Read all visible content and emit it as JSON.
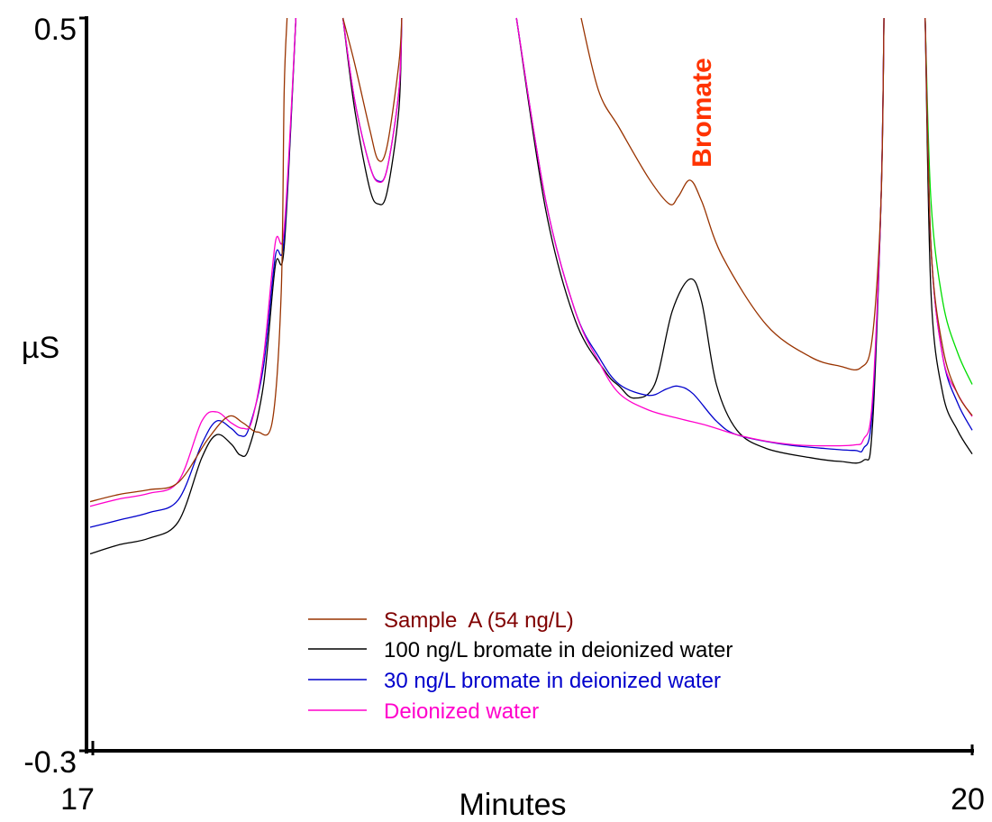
{
  "chart_data": {
    "type": "line",
    "title": "",
    "xlabel": "Minutes",
    "ylabel": "µS",
    "xlim": [
      17,
      20
    ],
    "ylim": [
      -0.3,
      0.5
    ],
    "x_tick_labels": [
      "17",
      "20"
    ],
    "y_tick_labels": [
      "0.5",
      "-0.3"
    ],
    "grid": false,
    "legend_position": "bottom-center",
    "annotation": {
      "text": "Bromate",
      "color": "#ff3300",
      "x": 19.04,
      "y": 0.42
    },
    "series": [
      {
        "name": "Sample  A (54 ng/L)",
        "color": "#993300",
        "points": [
          [
            17.0,
            -0.028
          ],
          [
            17.1,
            -0.02
          ],
          [
            17.2,
            -0.015
          ],
          [
            17.3,
            -0.007
          ],
          [
            17.4,
            0.04
          ],
          [
            17.47,
            0.065
          ],
          [
            17.52,
            0.058
          ],
          [
            17.57,
            0.048
          ],
          [
            17.62,
            0.06
          ],
          [
            17.65,
            0.2
          ],
          [
            17.66,
            0.42
          ],
          [
            17.67,
            0.5
          ],
          null,
          [
            17.86,
            0.5
          ],
          [
            17.9,
            0.45
          ],
          [
            17.95,
            0.38
          ],
          [
            17.98,
            0.345
          ],
          [
            18.01,
            0.36
          ],
          [
            18.05,
            0.45
          ],
          [
            18.06,
            0.5
          ],
          null,
          [
            18.67,
            0.5
          ],
          [
            18.73,
            0.42
          ],
          [
            18.8,
            0.38
          ],
          [
            18.9,
            0.325
          ],
          [
            18.97,
            0.297
          ],
          [
            19.0,
            0.305
          ],
          [
            19.04,
            0.323
          ],
          [
            19.08,
            0.3
          ],
          [
            19.15,
            0.24
          ],
          [
            19.3,
            0.165
          ],
          [
            19.45,
            0.13
          ],
          [
            19.55,
            0.12
          ],
          [
            19.62,
            0.118
          ],
          [
            19.66,
            0.15
          ],
          [
            19.69,
            0.3
          ],
          [
            19.7,
            0.5
          ],
          null,
          [
            19.84,
            0.5
          ],
          [
            19.86,
            0.25
          ],
          [
            19.9,
            0.14
          ],
          [
            19.95,
            0.09
          ],
          [
            20.0,
            0.066
          ]
        ]
      },
      {
        "name": "100 ng/L bromate in deionized water",
        "color": "#000000",
        "points": [
          [
            17.0,
            -0.085
          ],
          [
            17.1,
            -0.075
          ],
          [
            17.2,
            -0.068
          ],
          [
            17.3,
            -0.05
          ],
          [
            17.38,
            0.02
          ],
          [
            17.43,
            0.045
          ],
          [
            17.48,
            0.035
          ],
          [
            17.51,
            0.023
          ],
          [
            17.54,
            0.03
          ],
          [
            17.59,
            0.1
          ],
          [
            17.63,
            0.23
          ],
          [
            17.66,
            0.25
          ],
          [
            17.7,
            0.5
          ],
          null,
          [
            17.86,
            0.5
          ],
          [
            17.9,
            0.4
          ],
          [
            17.95,
            0.315
          ],
          [
            17.98,
            0.297
          ],
          [
            18.01,
            0.31
          ],
          [
            18.05,
            0.4
          ],
          [
            18.06,
            0.5
          ],
          null,
          [
            18.45,
            0.5
          ],
          [
            18.55,
            0.29
          ],
          [
            18.65,
            0.17
          ],
          [
            18.75,
            0.115
          ],
          [
            18.8,
            0.098
          ],
          [
            18.85,
            0.085
          ],
          [
            18.92,
            0.1
          ],
          [
            18.98,
            0.18
          ],
          [
            19.04,
            0.215
          ],
          [
            19.08,
            0.19
          ],
          [
            19.13,
            0.1
          ],
          [
            19.2,
            0.05
          ],
          [
            19.3,
            0.03
          ],
          [
            19.45,
            0.02
          ],
          [
            19.55,
            0.016
          ],
          [
            19.63,
            0.017
          ],
          [
            19.66,
            0.05
          ],
          [
            19.69,
            0.3
          ],
          [
            19.7,
            0.5
          ],
          null,
          [
            19.84,
            0.5
          ],
          [
            19.86,
            0.2
          ],
          [
            19.9,
            0.09
          ],
          [
            19.95,
            0.05
          ],
          [
            20.0,
            0.024
          ]
        ]
      },
      {
        "name": "30 ng/L bromate in deionized water",
        "color": "#0000cc",
        "points": [
          [
            17.0,
            -0.056
          ],
          [
            17.1,
            -0.048
          ],
          [
            17.2,
            -0.04
          ],
          [
            17.3,
            -0.026
          ],
          [
            17.38,
            0.035
          ],
          [
            17.43,
            0.06
          ],
          [
            17.48,
            0.052
          ],
          [
            17.51,
            0.044
          ],
          [
            17.54,
            0.052
          ],
          [
            17.59,
            0.12
          ],
          [
            17.63,
            0.24
          ],
          [
            17.66,
            0.26
          ],
          [
            17.7,
            0.5
          ],
          null,
          [
            17.86,
            0.5
          ],
          [
            17.9,
            0.41
          ],
          [
            17.95,
            0.34
          ],
          [
            17.98,
            0.322
          ],
          [
            18.01,
            0.335
          ],
          [
            18.05,
            0.42
          ],
          [
            18.06,
            0.5
          ],
          null,
          [
            18.45,
            0.5
          ],
          [
            18.55,
            0.3
          ],
          [
            18.65,
            0.18
          ],
          [
            18.73,
            0.13
          ],
          [
            18.8,
            0.1
          ],
          [
            18.9,
            0.088
          ],
          [
            18.96,
            0.095
          ],
          [
            19.0,
            0.098
          ],
          [
            19.05,
            0.09
          ],
          [
            19.13,
            0.06
          ],
          [
            19.2,
            0.045
          ],
          [
            19.35,
            0.035
          ],
          [
            19.5,
            0.03
          ],
          [
            19.6,
            0.028
          ],
          [
            19.63,
            0.03
          ],
          [
            19.66,
            0.07
          ],
          [
            19.69,
            0.3
          ],
          [
            19.7,
            0.5
          ],
          null,
          [
            19.84,
            0.5
          ],
          [
            19.86,
            0.25
          ],
          [
            19.9,
            0.13
          ],
          [
            19.95,
            0.08
          ],
          [
            20.0,
            0.05
          ]
        ]
      },
      {
        "name": "Deionized water",
        "color": "#ff00cc",
        "points": [
          [
            17.0,
            -0.033
          ],
          [
            17.1,
            -0.025
          ],
          [
            17.2,
            -0.019
          ],
          [
            17.3,
            -0.006
          ],
          [
            17.38,
            0.06
          ],
          [
            17.43,
            0.07
          ],
          [
            17.48,
            0.058
          ],
          [
            17.52,
            0.052
          ],
          [
            17.55,
            0.06
          ],
          [
            17.59,
            0.13
          ],
          [
            17.63,
            0.255
          ],
          [
            17.66,
            0.27
          ],
          [
            17.7,
            0.5
          ],
          null,
          [
            17.86,
            0.5
          ],
          [
            17.9,
            0.41
          ],
          [
            17.95,
            0.34
          ],
          [
            17.98,
            0.321
          ],
          [
            18.01,
            0.335
          ],
          [
            18.05,
            0.42
          ],
          [
            18.06,
            0.5
          ],
          null,
          [
            18.45,
            0.5
          ],
          [
            18.55,
            0.3
          ],
          [
            18.65,
            0.18
          ],
          [
            18.73,
            0.125
          ],
          [
            18.8,
            0.09
          ],
          [
            18.9,
            0.072
          ],
          [
            19.0,
            0.063
          ],
          [
            19.1,
            0.055
          ],
          [
            19.2,
            0.045
          ],
          [
            19.3,
            0.038
          ],
          [
            19.4,
            0.034
          ],
          [
            19.5,
            0.033
          ],
          [
            19.6,
            0.034
          ],
          [
            19.63,
            0.04
          ],
          [
            19.66,
            0.08
          ],
          [
            19.69,
            0.3
          ],
          [
            19.7,
            0.5
          ],
          null,
          [
            19.84,
            0.5
          ],
          [
            19.86,
            0.25
          ],
          [
            19.9,
            0.13
          ],
          [
            19.95,
            0.09
          ],
          [
            20.0,
            0.065
          ]
        ]
      },
      {
        "color": "#00dd00",
        "points": [
          [
            19.84,
            0.5
          ],
          [
            19.86,
            0.3
          ],
          [
            19.9,
            0.19
          ],
          [
            19.95,
            0.135
          ],
          [
            20.0,
            0.1
          ]
        ]
      }
    ]
  }
}
